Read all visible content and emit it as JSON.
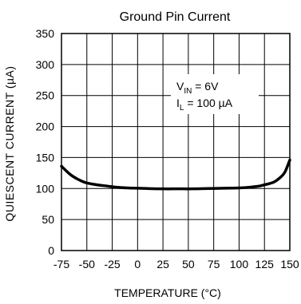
{
  "chart_data": {
    "type": "line",
    "title": "Ground Pin Current",
    "xlabel": "TEMPERATURE (°C)",
    "ylabel": "QUIESCENT CURRENT (µA)",
    "xlim": [
      -75,
      150
    ],
    "ylim": [
      0,
      350
    ],
    "xticks": [
      -75,
      -50,
      -25,
      0,
      25,
      50,
      75,
      100,
      125,
      150
    ],
    "xtick_labels": [
      "-75",
      "-50",
      "-25",
      "0",
      "25",
      "50",
      "75",
      "100",
      "125",
      "150"
    ],
    "yticks": [
      0,
      50,
      100,
      150,
      200,
      250,
      300,
      350
    ],
    "ytick_labels": [
      "0",
      "50",
      "100",
      "150",
      "200",
      "250",
      "300",
      "350"
    ],
    "grid": true,
    "annotations": [
      {
        "main": "V",
        "sub": "IN",
        "rest": " = 6V"
      },
      {
        "main": "I",
        "sub": "L",
        "rest": " = 100 µA"
      }
    ],
    "series": [
      {
        "color": "#000000",
        "x": [
          -75,
          -70,
          -65,
          -60,
          -55,
          -50,
          -40,
          -30,
          -20,
          -10,
          0,
          10,
          25,
          40,
          55,
          70,
          85,
          100,
          110,
          115,
          120,
          125,
          130,
          135,
          140,
          145,
          150
        ],
        "y": [
          136,
          128,
          121,
          116,
          112,
          109,
          106,
          104,
          102,
          101,
          100.5,
          100,
          99.5,
          99.5,
          99.5,
          100,
          100.5,
          101,
          102,
          103,
          104,
          106,
          108,
          111,
          117,
          126,
          146
        ]
      }
    ]
  }
}
